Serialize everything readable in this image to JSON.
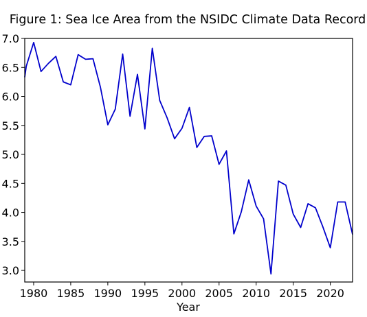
{
  "chart_data": {
    "type": "line",
    "title": "Figure 1: Sea Ice Area from the NSIDC Climate Data Record",
    "xlabel": "Year",
    "ylabel": "",
    "xlim": [
      1978.8,
      2023
    ],
    "ylim": [
      2.8,
      7.0
    ],
    "x_ticks": [
      1980,
      1985,
      1990,
      1995,
      2000,
      2005,
      2010,
      2015,
      2020
    ],
    "y_ticks": [
      "3.0",
      "3.5",
      "4.0",
      "4.5",
      "5.0",
      "5.5",
      "6.0",
      "6.5",
      "7.0"
    ],
    "grid": false,
    "line_color": "#0000cc",
    "x": [
      1978.8,
      1979,
      1980,
      1981,
      1982,
      1983,
      1984,
      1985,
      1986,
      1987,
      1988,
      1989,
      1990,
      1991,
      1992,
      1993,
      1994,
      1995,
      1996,
      1997,
      1998,
      1999,
      2000,
      2001,
      2002,
      2003,
      2004,
      2005,
      2006,
      2007,
      2008,
      2009,
      2010,
      2011,
      2012,
      2013,
      2014,
      2015,
      2016,
      2017,
      2018,
      2019,
      2020,
      2021,
      2022,
      2023
    ],
    "values": [
      6.33,
      6.52,
      6.93,
      6.43,
      6.57,
      6.69,
      6.25,
      6.2,
      6.72,
      6.64,
      6.65,
      6.16,
      5.51,
      5.78,
      6.73,
      5.66,
      6.38,
      5.44,
      6.83,
      5.93,
      5.63,
      5.27,
      5.45,
      5.81,
      5.12,
      5.31,
      5.32,
      4.83,
      5.06,
      3.63,
      4.01,
      4.56,
      4.11,
      3.89,
      2.94,
      4.54,
      4.47,
      3.97,
      3.74,
      4.15,
      4.08,
      3.75,
      3.39,
      4.18,
      4.18,
      3.62
    ]
  }
}
